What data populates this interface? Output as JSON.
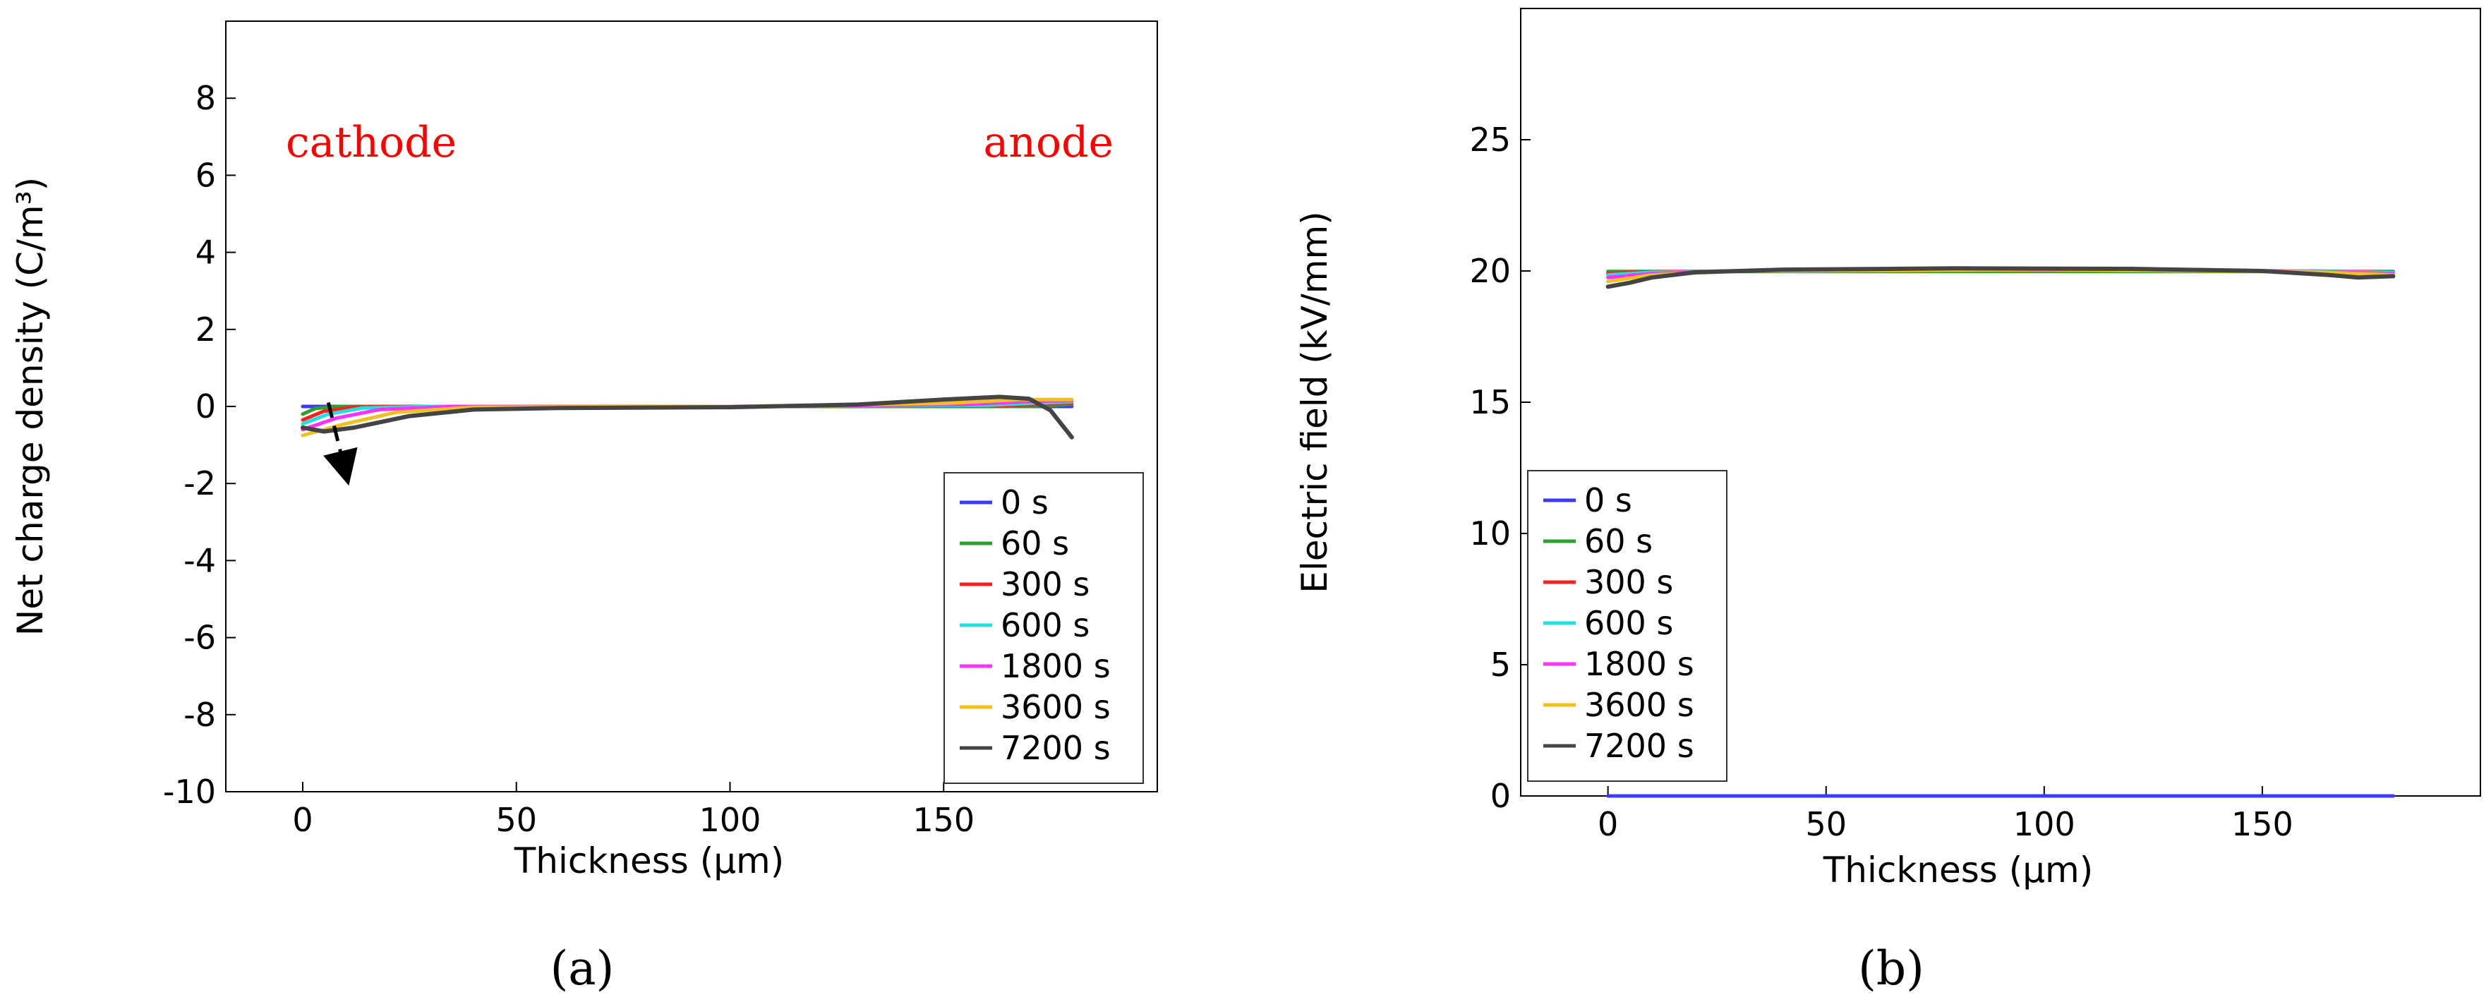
{
  "series_defs": [
    {
      "name": "0 s",
      "color": "#3b3bff"
    },
    {
      "name": "60 s",
      "color": "#2e9e2e"
    },
    {
      "name": "300 s",
      "color": "#ff2020"
    },
    {
      "name": "600 s",
      "color": "#22e0e0"
    },
    {
      "name": "1800 s",
      "color": "#ff33ff"
    },
    {
      "name": "3600 s",
      "color": "#f0c020"
    },
    {
      "name": "7200 s",
      "color": "#444444"
    }
  ],
  "chart_data": [
    {
      "type": "line",
      "label": "(a)",
      "title": "",
      "xlabel": "Thickness (µm)",
      "ylabel": "Net charge density (C/m³)",
      "xlim": [
        -18,
        200
      ],
      "ylim": [
        -10,
        10
      ],
      "xticks": [
        0,
        50,
        100,
        150
      ],
      "xtick_labels": [
        "0",
        "50",
        "100",
        "150"
      ],
      "yticks": [
        -10,
        -8,
        -6,
        -4,
        -2,
        0,
        2,
        4,
        6,
        8
      ],
      "ytick_labels": [
        "-10",
        "-8",
        "-6",
        "-4",
        "-2",
        "0",
        "2",
        "4",
        "6",
        "8"
      ],
      "legend": "bottom-right",
      "annotations": [
        "cathode",
        "anode"
      ],
      "series": [
        {
          "name": "0 s",
          "x": [
            0,
            180
          ],
          "y": [
            0,
            0
          ]
        },
        {
          "name": "60 s",
          "x": [
            0,
            3,
            8,
            20,
            100,
            170,
            176,
            180
          ],
          "y": [
            -0.2,
            -0.05,
            0,
            0,
            0,
            0,
            0.03,
            0.06
          ]
        },
        {
          "name": "300 s",
          "x": [
            0,
            5,
            12,
            25,
            100,
            165,
            174,
            180
          ],
          "y": [
            -0.35,
            -0.12,
            -0.02,
            0,
            0,
            0.02,
            0.06,
            0.1
          ]
        },
        {
          "name": "600 s",
          "x": [
            0,
            6,
            14,
            30,
            100,
            160,
            172,
            180
          ],
          "y": [
            -0.45,
            -0.2,
            -0.04,
            0,
            0,
            0.03,
            0.09,
            0.12
          ]
        },
        {
          "name": "1800 s",
          "x": [
            0,
            8,
            18,
            35,
            100,
            155,
            170,
            180
          ],
          "y": [
            -0.6,
            -0.3,
            -0.08,
            0,
            0,
            0.05,
            0.13,
            0.15
          ]
        },
        {
          "name": "3600 s",
          "x": [
            0,
            10,
            22,
            40,
            100,
            150,
            168,
            180
          ],
          "y": [
            -0.75,
            -0.45,
            -0.15,
            -0.02,
            0,
            0.08,
            0.18,
            0.18
          ]
        },
        {
          "name": "7200 s",
          "x": [
            0,
            5,
            12,
            25,
            40,
            60,
            100,
            130,
            150,
            163,
            170,
            175,
            180
          ],
          "y": [
            -0.55,
            -0.65,
            -0.55,
            -0.25,
            -0.08,
            -0.04,
            -0.02,
            0.05,
            0.18,
            0.25,
            0.2,
            -0.1,
            -0.8
          ]
        }
      ]
    },
    {
      "type": "line",
      "label": "(b)",
      "title": "",
      "xlabel": "Thickness (µm)",
      "ylabel": "Electric field  (kV/mm)",
      "xlim": [
        -20,
        200
      ],
      "ylim": [
        0,
        30
      ],
      "xticks": [
        0,
        50,
        100,
        150
      ],
      "xtick_labels": [
        "0",
        "50",
        "100",
        "150"
      ],
      "yticks": [
        0,
        5,
        10,
        15,
        20,
        25
      ],
      "ytick_labels": [
        "0",
        "5",
        "10",
        "15",
        "20",
        "25"
      ],
      "legend": "bottom-left",
      "annotations": [],
      "series": [
        {
          "name": "0 s",
          "x": [
            0,
            180
          ],
          "y": [
            0,
            0
          ]
        },
        {
          "name": "60 s",
          "x": [
            0,
            180
          ],
          "y": [
            19.98,
            19.98
          ]
        },
        {
          "name": "300 s",
          "x": [
            0,
            10,
            30,
            100,
            160,
            180
          ],
          "y": [
            19.9,
            19.97,
            20.0,
            20.02,
            20.0,
            19.96
          ]
        },
        {
          "name": "600 s",
          "x": [
            0,
            10,
            30,
            100,
            160,
            180
          ],
          "y": [
            19.85,
            19.95,
            20.0,
            20.03,
            20.0,
            19.94
          ]
        },
        {
          "name": "1800 s",
          "x": [
            0,
            10,
            30,
            100,
            160,
            180
          ],
          "y": [
            19.75,
            19.9,
            20.0,
            20.04,
            19.98,
            19.9
          ]
        },
        {
          "name": "3600 s",
          "x": [
            0,
            10,
            30,
            100,
            160,
            180
          ],
          "y": [
            19.6,
            19.85,
            20.0,
            20.05,
            19.97,
            19.85
          ]
        },
        {
          "name": "7200 s",
          "x": [
            0,
            5,
            10,
            20,
            40,
            80,
            120,
            150,
            165,
            172,
            180
          ],
          "y": [
            19.4,
            19.55,
            19.75,
            19.95,
            20.05,
            20.1,
            20.08,
            20.0,
            19.85,
            19.75,
            19.8
          ]
        }
      ]
    }
  ]
}
